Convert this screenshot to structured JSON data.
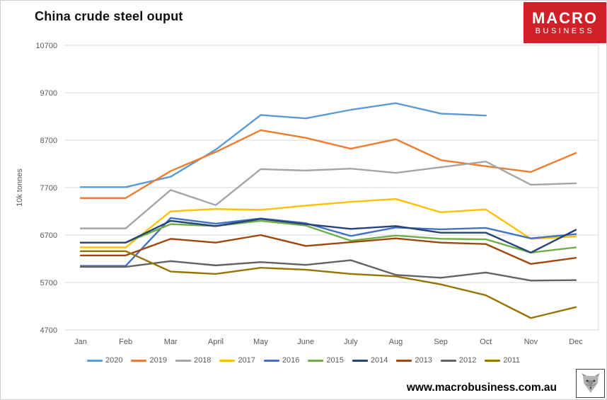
{
  "title": "China crude steel ouput",
  "logo": {
    "line1": "MACRO",
    "line2": "BUSINESS"
  },
  "footer": {
    "url": "www.macrobusiness.com.au",
    "wolf_icon": "wolf-head-icon"
  },
  "style_colors": {
    "logo_red": "#d0202a",
    "gridline": "#d9d9d9",
    "axis_text": "#595959",
    "title_text": "#111111"
  },
  "chart_data": {
    "type": "line",
    "title": "China crude steel ouput",
    "xlabel": "",
    "ylabel": "10k tonnes",
    "ylim": [
      4700,
      10700
    ],
    "yticks": [
      10700,
      9700,
      8700,
      7700,
      6700,
      5700,
      4700
    ],
    "grid": true,
    "legend_position": "bottom",
    "categories": [
      "Jan",
      "Feb",
      "Mar",
      "April",
      "May",
      "June",
      "July",
      "Aug",
      "Sep",
      "Oct",
      "Nov",
      "Dec"
    ],
    "series": [
      {
        "name": "2020",
        "color": "#5B9BD5",
        "values": [
          7710,
          7710,
          7930,
          8500,
          9230,
          9160,
          9340,
          9480,
          9260,
          9220,
          null,
          null
        ]
      },
      {
        "name": "2019",
        "color": "#ED7D31",
        "values": [
          7480,
          7480,
          8050,
          8450,
          8910,
          8750,
          8520,
          8720,
          8280,
          8150,
          8030,
          8430
        ]
      },
      {
        "name": "2018",
        "color": "#A5A5A5",
        "values": [
          6840,
          6840,
          7650,
          7330,
          8090,
          8060,
          8100,
          8010,
          8130,
          8250,
          7760,
          7790
        ]
      },
      {
        "name": "2017",
        "color": "#FFC000",
        "values": [
          6440,
          6440,
          7200,
          7250,
          7230,
          7320,
          7400,
          7460,
          7180,
          7240,
          6620,
          6670
        ]
      },
      {
        "name": "2016",
        "color": "#4472C4",
        "values": [
          6050,
          6050,
          7060,
          6940,
          7050,
          6950,
          6680,
          6860,
          6820,
          6850,
          6630,
          6720
        ]
      },
      {
        "name": "2015",
        "color": "#70AD47",
        "values": [
          6540,
          6540,
          6930,
          6890,
          7000,
          6900,
          6580,
          6690,
          6620,
          6610,
          6330,
          6440
        ]
      },
      {
        "name": "2014",
        "color": "#264478",
        "values": [
          6540,
          6540,
          7000,
          6890,
          7040,
          6930,
          6830,
          6890,
          6750,
          6750,
          6330,
          6810
        ]
      },
      {
        "name": "2013",
        "color": "#9E480E",
        "values": [
          6270,
          6270,
          6620,
          6540,
          6700,
          6470,
          6550,
          6630,
          6540,
          6510,
          6090,
          6220
        ]
      },
      {
        "name": "2012",
        "color": "#636363",
        "values": [
          6030,
          6030,
          6150,
          6060,
          6130,
          6070,
          6170,
          5860,
          5800,
          5910,
          5740,
          5750
        ]
      },
      {
        "name": "2011",
        "color": "#997300",
        "values": [
          6360,
          6360,
          5930,
          5880,
          6010,
          5970,
          5880,
          5830,
          5660,
          5430,
          4950,
          5180
        ]
      }
    ]
  }
}
